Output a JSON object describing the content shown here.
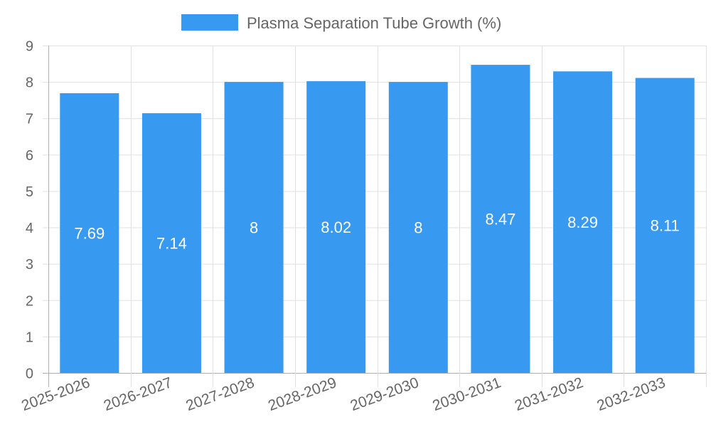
{
  "chart_data": {
    "type": "bar",
    "title": "",
    "legend": {
      "label": "Plasma Separation Tube Growth (%)",
      "placement": "top-center"
    },
    "categories": [
      "2025-2026",
      "2026-2027",
      "2027-2028",
      "2028-2029",
      "2029-2030",
      "2030-2031",
      "2031-2032",
      "2032-2033"
    ],
    "values": [
      7.69,
      7.14,
      8,
      8.02,
      8,
      8.47,
      8.29,
      8.11
    ],
    "data_labels": [
      "7.69",
      "7.14",
      "8",
      "8.02",
      "8",
      "8.47",
      "8.29",
      "8.11"
    ],
    "ylim": [
      0,
      9
    ],
    "yticks": [
      "0",
      "1",
      "2",
      "3",
      "4",
      "5",
      "6",
      "7",
      "8",
      "9"
    ],
    "xlabel": "",
    "ylabel": "",
    "grid": true,
    "colors": {
      "bar": "#3799f0",
      "grid": "#e0e0e0",
      "axis": "#b0b0b0",
      "text": "#666666",
      "label": "#ffffff"
    }
  }
}
